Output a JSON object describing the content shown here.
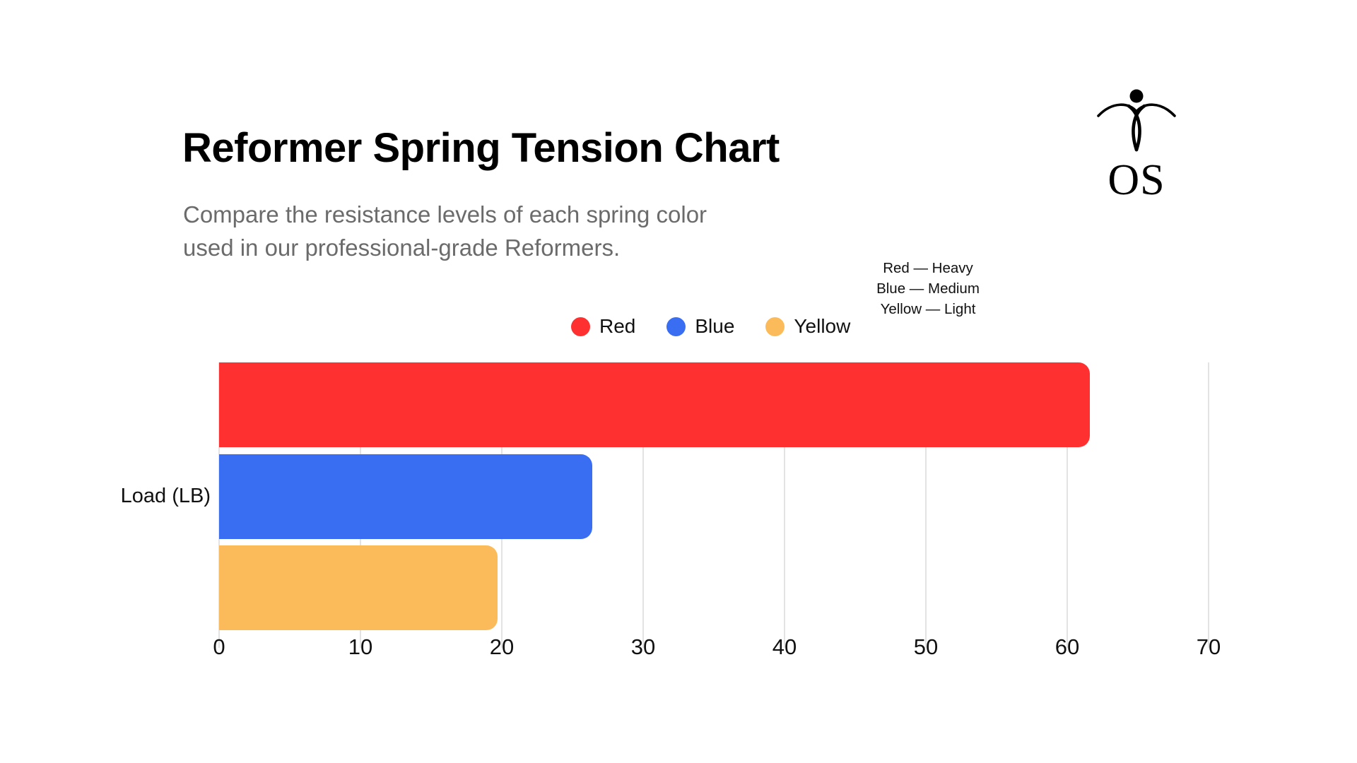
{
  "header": {
    "title": "Reformer Spring Tension Chart",
    "subtitle_lines": [
      "Compare the resistance levels of each spring color",
      "used in our professional-grade Reformers."
    ]
  },
  "logo": {
    "text": "OS",
    "icon": "pilates-figure-icon"
  },
  "annotation": {
    "lines": [
      "Red — Heavy",
      "Blue — Medium",
      "Yellow — Light"
    ]
  },
  "legend": {
    "items": [
      {
        "label": "Red",
        "color": "#FF3030"
      },
      {
        "label": "Blue",
        "color": "#3A6EF2"
      },
      {
        "label": "Yellow",
        "color": "#FCBB5B"
      }
    ]
  },
  "chart_data": {
    "type": "bar",
    "orientation": "horizontal",
    "title": "Reformer Spring Tension Chart",
    "categories": [
      "Red",
      "Blue",
      "Yellow"
    ],
    "values": [
      61.6,
      26.4,
      19.7
    ],
    "colors": [
      "#FF3030",
      "#3A6EF2",
      "#FCBB5B"
    ],
    "ylabel": "Load (LB)",
    "xlabel": "",
    "xlim": [
      0,
      70
    ],
    "x_ticks": [
      0,
      10,
      20,
      30,
      40,
      50,
      60,
      70
    ],
    "grid": "vertical",
    "gridline_color": "#e3e3e3",
    "legend_position": "top-center"
  }
}
